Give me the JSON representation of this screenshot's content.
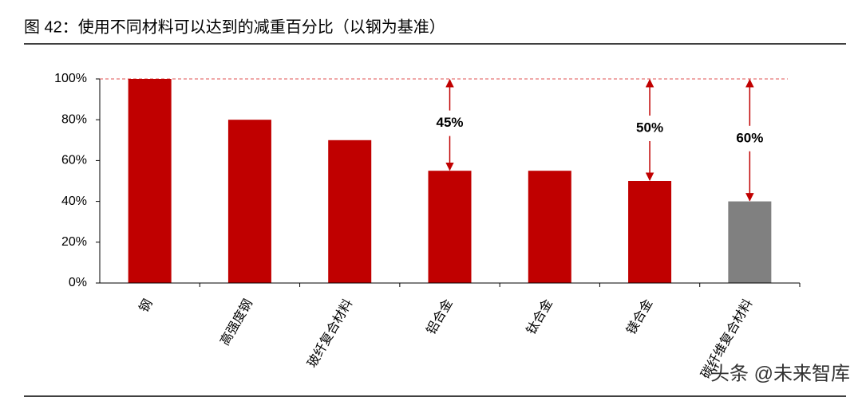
{
  "chart_data": {
    "type": "bar",
    "title": "图 42：使用不同材料可以达到的减重百分比（以钢为基准）",
    "categories": [
      "钢",
      "高强度钢",
      "玻纤复合材料",
      "铝合金",
      "钛合金",
      "镁合金",
      "碳纤维复合材料"
    ],
    "values": [
      100,
      80,
      70,
      55,
      55,
      50,
      40
    ],
    "colors": [
      "#c00000",
      "#c00000",
      "#c00000",
      "#c00000",
      "#c00000",
      "#c00000",
      "#808080"
    ],
    "ylim": [
      0,
      100
    ],
    "yticks": [
      {
        "value": 0,
        "label": "0%"
      },
      {
        "value": 20,
        "label": "20%"
      },
      {
        "value": 40,
        "label": "40%"
      },
      {
        "value": 60,
        "label": "60%"
      },
      {
        "value": 80,
        "label": "80%"
      },
      {
        "value": 100,
        "label": "100%"
      }
    ],
    "reference_line": 100,
    "annotations": [
      {
        "label": "45%",
        "category": "铝合金"
      },
      {
        "label": "50%",
        "category": "镁合金"
      },
      {
        "label": "60%",
        "category": "碳纤维复合材料"
      }
    ],
    "watermark": "头条 @未来智库"
  }
}
